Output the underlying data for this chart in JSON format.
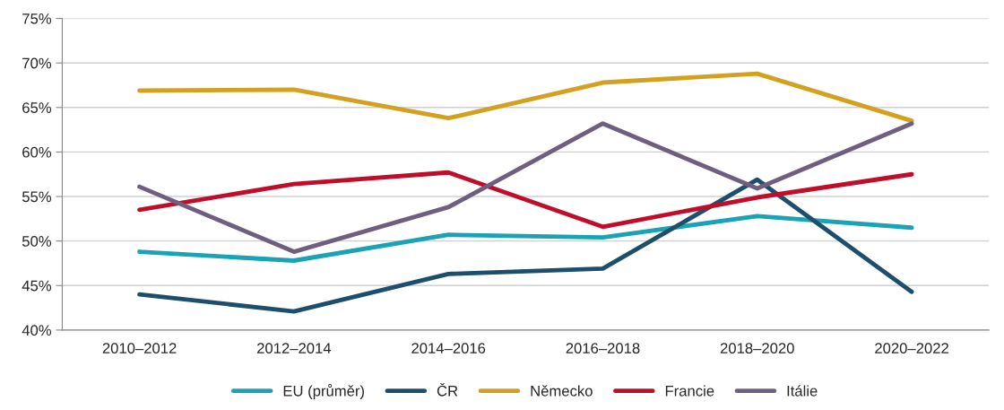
{
  "chart_data": {
    "type": "line",
    "categories": [
      "2010–2012",
      "2012–2014",
      "2014–2016",
      "2016–2018",
      "2018–2020",
      "2020–2022"
    ],
    "series": [
      {
        "name": "EU (průměr)",
        "color": "#1aa3b5",
        "values": [
          48.8,
          47.8,
          50.7,
          50.4,
          52.8,
          51.5
        ]
      },
      {
        "name": "ČR",
        "color": "#1d4e6b",
        "values": [
          44.0,
          42.1,
          46.3,
          46.9,
          56.9,
          44.3
        ]
      },
      {
        "name": "Německo",
        "color": "#d4a020",
        "values": [
          66.9,
          67.0,
          63.8,
          67.8,
          68.8,
          63.5
        ]
      },
      {
        "name": "Francie",
        "color": "#c00d2a",
        "values": [
          53.5,
          56.4,
          57.7,
          51.6,
          54.9,
          57.5
        ]
      },
      {
        "name": "Itálie",
        "color": "#6e5f7e",
        "values": [
          56.1,
          48.8,
          53.8,
          63.2,
          55.9,
          63.2
        ]
      }
    ],
    "ylim": [
      40,
      75
    ],
    "yticks": [
      {
        "value": 40,
        "label": "40%"
      },
      {
        "value": 45,
        "label": "45%"
      },
      {
        "value": 50,
        "label": "50%"
      },
      {
        "value": 55,
        "label": "55%"
      },
      {
        "value": 60,
        "label": "60%"
      },
      {
        "value": 65,
        "label": "65%"
      },
      {
        "value": 70,
        "label": "70%"
      },
      {
        "value": 75,
        "label": "75%"
      }
    ],
    "grid": "y",
    "legend": "bottom",
    "marker": "none",
    "line_style": "solid"
  }
}
